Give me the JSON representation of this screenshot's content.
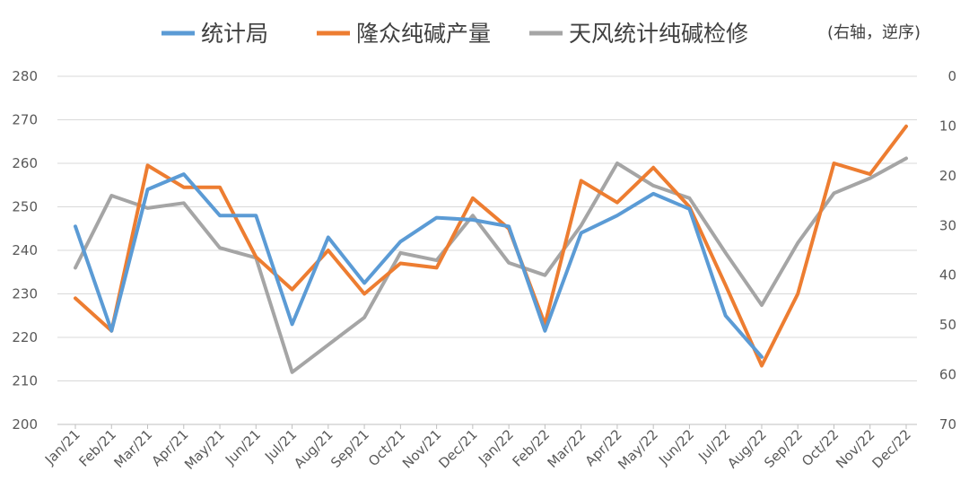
{
  "chart_data": {
    "type": "line",
    "categories": [
      "Jan/21",
      "Feb/21",
      "Mar/21",
      "Apr/21",
      "May/21",
      "Jun/21",
      "Jul/21",
      "Aug/21",
      "Sep/21",
      "Oct/21",
      "Nov/21",
      "Dec/21",
      "Jan/22",
      "Feb/22",
      "Mar/22",
      "Apr/22",
      "May/22",
      "Jun/22",
      "Jul/22",
      "Aug/22",
      "Sep/22",
      "Oct/22",
      "Nov/22",
      "Dec/22"
    ],
    "y_left": {
      "ticks": [
        "200",
        "210",
        "220",
        "230",
        "240",
        "250",
        "260",
        "270",
        "280"
      ],
      "ylim": [
        200,
        280
      ]
    },
    "y_right": {
      "ticks": [
        "0",
        "10",
        "20",
        "30",
        "40",
        "50",
        "60",
        "70"
      ],
      "ylim": [
        0,
        70
      ],
      "reversed": true
    },
    "grid": "horizontal",
    "legend_position": "top",
    "legend_note": "(右轴，逆序)",
    "series": [
      {
        "name": "统计局",
        "color": "#5B9BD5",
        "axis": "left",
        "values": [
          245.5,
          221.5,
          254,
          257.5,
          248,
          248,
          223,
          243,
          232.5,
          242,
          247.5,
          247,
          245.5,
          221.5,
          244,
          248,
          253,
          249.5,
          225,
          215.5,
          null,
          null,
          null,
          null
        ]
      },
      {
        "name": "隆众纯碱产量",
        "color": "#ED7D31",
        "axis": "left",
        "values": [
          229,
          221.5,
          259.5,
          254.5,
          254.5,
          238.5,
          231,
          240,
          230,
          237,
          236,
          252,
          245,
          223,
          256,
          251,
          259,
          250,
          232,
          213.5,
          230,
          260,
          257.5,
          268.5
        ]
      },
      {
        "name": "天风统计纯碱检修",
        "color": "#A5A5A5",
        "axis": "right",
        "values": [
          38.5,
          24,
          26.5,
          25.5,
          34.5,
          36.5,
          59.5,
          54,
          48.5,
          35.5,
          37,
          28,
          37.5,
          40,
          30,
          17.5,
          22,
          24.5,
          35.5,
          46,
          33.5,
          23.5,
          20.5,
          16.5
        ]
      }
    ]
  }
}
